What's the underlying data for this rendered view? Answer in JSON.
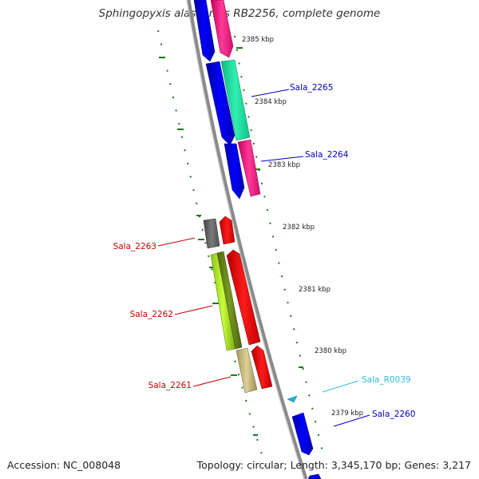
{
  "header": {
    "title": "Sphingopyxis alaskensis RB2256, complete genome"
  },
  "footer": {
    "accession": "Accession: NC_008048",
    "summary": "Topology: circular; Length: 3,345,170 bp; Genes: 3,217"
  },
  "ticks": [
    "2385 kbp",
    "2384 kbp",
    "2383 kbp",
    "2382 kbp",
    "2381 kbp",
    "2380 kbp",
    "2379 kbp"
  ],
  "genes": [
    {
      "label": "Sala_2265",
      "color": "#0000cc"
    },
    {
      "label": "Sala_2264",
      "color": "#0000cc"
    },
    {
      "label": "Sala_2263",
      "color": "#cc0000"
    },
    {
      "label": "Sala_2262",
      "color": "#cc0000"
    },
    {
      "label": "Sala_2261",
      "color": "#cc0000"
    },
    {
      "label": "Sala_R0039",
      "color": "#33bbdd"
    },
    {
      "label": "Sala_2260",
      "color": "#0000cc"
    }
  ],
  "colors": {
    "backbone": "#8a8a8a",
    "forward_cds": "#0000ee",
    "reverse_cds": "#ff0000",
    "gc_skew": "#1a7a1a",
    "pink": "#ff2a8f",
    "teal": "#1ee8a0",
    "gray": "#666666",
    "lime": "#9acd32",
    "khaki": "#c8bd80",
    "rna": "#22b0e0"
  }
}
